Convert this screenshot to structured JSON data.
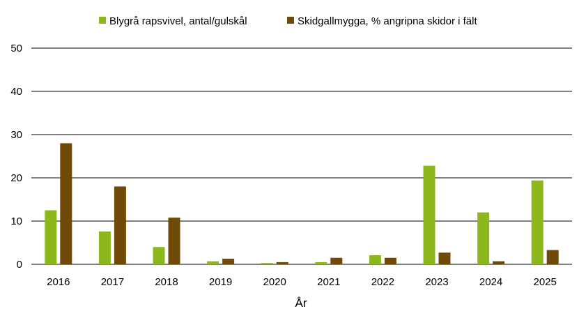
{
  "chart_data": {
    "type": "bar",
    "categories": [
      "2016",
      "2017",
      "2018",
      "2019",
      "2020",
      "2021",
      "2022",
      "2023",
      "2024",
      "2025"
    ],
    "series": [
      {
        "name": "Blygrå rapsvivel, antal/gulskål",
        "color": "#8db81c",
        "values": [
          12.5,
          7.6,
          4.0,
          0.7,
          0.3,
          0.5,
          2.1,
          22.8,
          12.0,
          19.4
        ]
      },
      {
        "name": "Skidgallmygga, % angripna skidor i fält",
        "color": "#6f4a08",
        "values": [
          28.0,
          18.0,
          10.8,
          1.3,
          0.5,
          1.5,
          1.5,
          2.7,
          0.7,
          3.3
        ]
      }
    ],
    "xlabel": "År",
    "ylabel": "",
    "ylim": [
      0,
      50
    ],
    "yticks": [
      0,
      10,
      20,
      30,
      40,
      50
    ],
    "grid": true,
    "legend": "top-center"
  }
}
